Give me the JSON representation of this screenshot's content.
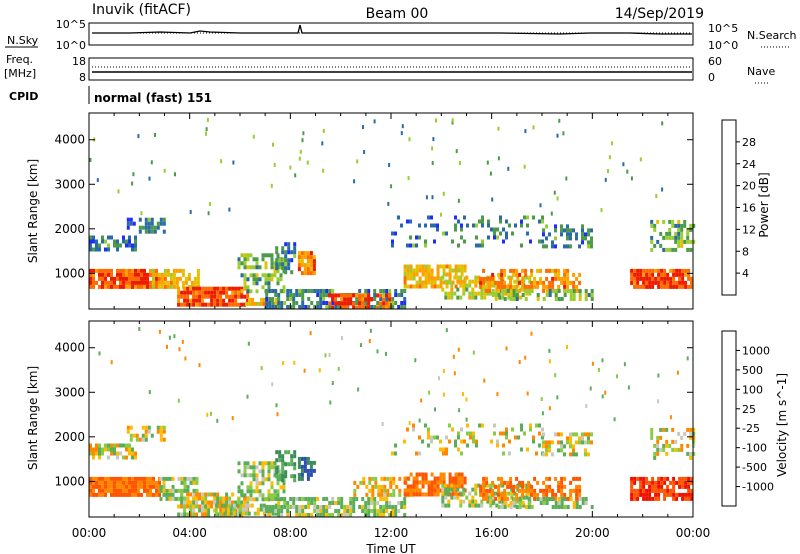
{
  "header": {
    "station": "Inuvik (fitACF)",
    "beam": "Beam 00",
    "date": "14/Sep/2019"
  },
  "status_panels": {
    "nsky": {
      "label": "N.Sky",
      "ticks": [
        "10^5",
        "10^0"
      ],
      "right_label": "N.Search",
      "right_ticks": [
        "10^5",
        "10^0"
      ]
    },
    "freq": {
      "label_line1": "Freq.",
      "label_line2": "[MHz]",
      "ticks": [
        "18",
        "8"
      ],
      "right_label": "Nave",
      "right_ticks": [
        "60",
        "0"
      ]
    },
    "cpid": {
      "label": "CPID",
      "text": "normal (fast) 151"
    }
  },
  "chart_data": [
    {
      "type": "heatmap",
      "name": "power",
      "ylabel": "Slant Range [km]",
      "ylim": [
        200,
        4600
      ],
      "yticks": [
        1000,
        2000,
        3000,
        4000
      ],
      "xlim": [
        0,
        24
      ],
      "colorbar": {
        "title": "Power [dB]",
        "labels": [
          "28",
          "24",
          "20",
          "16",
          "12",
          "8",
          "4"
        ],
        "colors": [
          "#ee1a00",
          "#ff6b00",
          "#ff9e00",
          "#e6c000",
          "#9acd32",
          "#4a9a4a",
          "#2a6aa6",
          "#1e2cff"
        ]
      },
      "scatter_regions": [
        {
          "t0": 0.0,
          "t1": 2.7,
          "r0": 700,
          "r1": 1100,
          "level": 28,
          "density": 0.92
        },
        {
          "t0": 0.0,
          "t1": 1.8,
          "r0": 1550,
          "r1": 1850,
          "level": 8,
          "density": 0.6
        },
        {
          "t0": 1.5,
          "t1": 3.0,
          "r0": 1900,
          "r1": 2250,
          "level": 8,
          "density": 0.55
        },
        {
          "t0": 2.5,
          "t1": 4.3,
          "r0": 700,
          "r1": 1100,
          "level": 20,
          "density": 0.75
        },
        {
          "t0": 3.5,
          "t1": 6.3,
          "r0": 300,
          "r1": 700,
          "level": 28,
          "density": 0.88
        },
        {
          "t0": 6.2,
          "t1": 7.6,
          "r0": 300,
          "r1": 450,
          "level": 20,
          "density": 0.7
        },
        {
          "t0": 5.9,
          "t1": 7.7,
          "r0": 600,
          "r1": 1450,
          "level": 12,
          "density": 0.55
        },
        {
          "t0": 7.4,
          "t1": 8.2,
          "r0": 1000,
          "r1": 1700,
          "level": 8,
          "density": 0.6
        },
        {
          "t0": 8.3,
          "t1": 9.0,
          "r0": 1050,
          "r1": 1500,
          "level": 24,
          "density": 0.85
        },
        {
          "t0": 7.0,
          "t1": 12.5,
          "r0": 250,
          "r1": 650,
          "level": 8,
          "density": 0.55
        },
        {
          "t0": 9.5,
          "t1": 12.0,
          "r0": 250,
          "r1": 550,
          "level": 28,
          "density": 0.72
        },
        {
          "t0": 12.5,
          "t1": 15.0,
          "r0": 750,
          "r1": 1200,
          "level": 20,
          "density": 0.78
        },
        {
          "t0": 14.0,
          "t1": 17.5,
          "r0": 500,
          "r1": 950,
          "level": 16,
          "density": 0.6
        },
        {
          "t0": 15.5,
          "t1": 19.5,
          "r0": 650,
          "r1": 1100,
          "level": 24,
          "density": 0.6
        },
        {
          "t0": 16.0,
          "t1": 20.0,
          "r0": 450,
          "r1": 650,
          "level": 12,
          "density": 0.55
        },
        {
          "t0": 12.0,
          "t1": 18.0,
          "r0": 1600,
          "r1": 2300,
          "level": 8,
          "density": 0.2
        },
        {
          "t0": 18.0,
          "t1": 20.0,
          "r0": 1650,
          "r1": 2100,
          "level": 8,
          "density": 0.5
        },
        {
          "t0": 21.5,
          "t1": 23.9,
          "r0": 700,
          "r1": 1100,
          "level": 28,
          "density": 0.9
        },
        {
          "t0": 22.3,
          "t1": 24.0,
          "r0": 1500,
          "r1": 2200,
          "level": 12,
          "density": 0.4
        }
      ]
    },
    {
      "type": "heatmap",
      "name": "velocity",
      "ylabel": "Slant Range [km]",
      "ylim": [
        200,
        4600
      ],
      "yticks": [
        1000,
        2000,
        3000,
        4000
      ],
      "xlim": [
        0,
        24
      ],
      "xticks": [
        "00:00",
        "04:00",
        "08:00",
        "12:00",
        "16:00",
        "20:00",
        "00:00"
      ],
      "xlabel": "Time UT",
      "colorbar": {
        "title": "Velocity [m s^-1]",
        "labels": [
          "1000",
          "500",
          "100",
          "25",
          "-25",
          "-100",
          "-500",
          "-1000"
        ],
        "colors": [
          "#2a4fb0",
          "#3a8a5a",
          "#5aae5a",
          "#88cc44",
          "#c8c8c0",
          "#ffbb00",
          "#ff8800",
          "#ff5500",
          "#ee1100"
        ]
      },
      "scatter_regions": [
        {
          "t0": 0.0,
          "t1": 2.8,
          "r0": 700,
          "r1": 1100,
          "level": -500,
          "density": 0.92
        },
        {
          "t0": 0.0,
          "t1": 1.8,
          "r0": 1550,
          "r1": 1850,
          "level": 0,
          "density": 0.6
        },
        {
          "t0": 1.5,
          "t1": 3.0,
          "r0": 1900,
          "r1": 2250,
          "level": 0,
          "density": 0.55
        },
        {
          "t0": 2.8,
          "t1": 4.3,
          "r0": 600,
          "r1": 1100,
          "level": 100,
          "density": 0.7
        },
        {
          "t0": 3.5,
          "t1": 6.3,
          "r0": 300,
          "r1": 750,
          "level": 0,
          "density": 0.82
        },
        {
          "t0": 5.0,
          "t1": 7.5,
          "r0": 250,
          "r1": 500,
          "level": 100,
          "density": 0.7
        },
        {
          "t0": 5.9,
          "t1": 7.7,
          "r0": 600,
          "r1": 1450,
          "level": 100,
          "density": 0.55
        },
        {
          "t0": 7.4,
          "t1": 8.2,
          "r0": 1000,
          "r1": 1700,
          "level": 500,
          "density": 0.55
        },
        {
          "t0": 8.3,
          "t1": 9.0,
          "r0": 1050,
          "r1": 1550,
          "level": 1000,
          "density": 0.85
        },
        {
          "t0": 7.0,
          "t1": 12.5,
          "r0": 250,
          "r1": 650,
          "level": 100,
          "density": 0.65
        },
        {
          "t0": 10.5,
          "t1": 13.0,
          "r0": 700,
          "r1": 1100,
          "level": -100,
          "density": 0.55
        },
        {
          "t0": 12.5,
          "t1": 15.0,
          "r0": 750,
          "r1": 1200,
          "level": -500,
          "density": 0.75
        },
        {
          "t0": 14.0,
          "t1": 17.5,
          "r0": 500,
          "r1": 950,
          "level": 100,
          "density": 0.6
        },
        {
          "t0": 15.5,
          "t1": 19.5,
          "r0": 650,
          "r1": 1100,
          "level": -500,
          "density": 0.6
        },
        {
          "t0": 16.0,
          "t1": 20.0,
          "r0": 450,
          "r1": 650,
          "level": 100,
          "density": 0.55
        },
        {
          "t0": 12.0,
          "t1": 18.0,
          "r0": 1600,
          "r1": 2300,
          "level": 0,
          "density": 0.2
        },
        {
          "t0": 18.0,
          "t1": 20.0,
          "r0": 1650,
          "r1": 2100,
          "level": 0,
          "density": 0.5
        },
        {
          "t0": 21.5,
          "t1": 23.9,
          "r0": 600,
          "r1": 1100,
          "level": -1000,
          "density": 0.85
        },
        {
          "t0": 22.3,
          "t1": 24.0,
          "r0": 1500,
          "r1": 2200,
          "level": 0,
          "density": 0.4
        }
      ]
    }
  ]
}
